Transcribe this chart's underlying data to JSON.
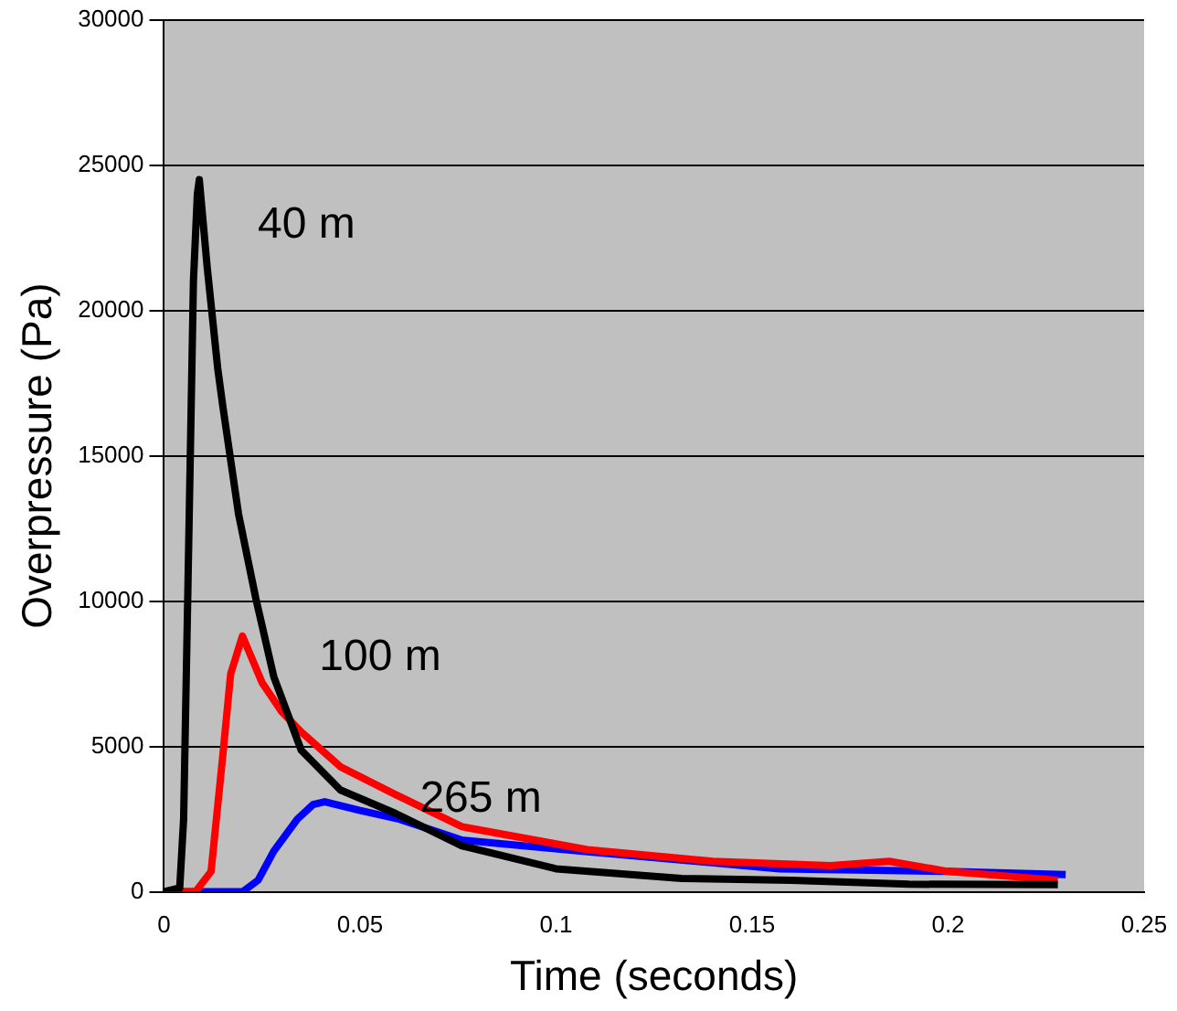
{
  "chart_data": {
    "type": "line",
    "xlabel": "Time (seconds)",
    "ylabel": "Overpressure (Pa)",
    "xlim": [
      0,
      0.25
    ],
    "xticks": [
      0,
      0.05,
      0.1,
      0.15,
      0.2,
      0.25
    ],
    "ylim": [
      0,
      30000
    ],
    "yticks": [
      0,
      5000,
      10000,
      15000,
      20000,
      25000,
      30000
    ],
    "grid": "y",
    "legend": false,
    "marker": "none",
    "series": [
      {
        "name": "40 m",
        "color": "#000000",
        "x": [
          0,
          0.004,
          0.005,
          0.0063,
          0.0075,
          0.0085,
          0.009,
          0.011,
          0.0137,
          0.015,
          0.019,
          0.0234,
          0.028,
          0.035,
          0.045,
          0.059,
          0.076,
          0.1,
          0.132,
          0.16,
          0.19,
          0.228
        ],
        "values": [
          0,
          130,
          2500,
          12000,
          21000,
          24000,
          24500,
          21500,
          18000,
          16700,
          13000,
          10100,
          7400,
          4870,
          3500,
          2700,
          1580,
          790,
          460,
          400,
          260,
          250
        ]
      },
      {
        "name": "100 m",
        "color": "#ff0000",
        "x": [
          0,
          0.008,
          0.012,
          0.015,
          0.017,
          0.02,
          0.025,
          0.03,
          0.035,
          0.045,
          0.059,
          0.076,
          0.108,
          0.14,
          0.17,
          0.185,
          0.2,
          0.228
        ],
        "values": [
          0,
          0,
          700,
          4700,
          7500,
          8800,
          7200,
          6200,
          5500,
          4300,
          3350,
          2240,
          1450,
          1050,
          900,
          1050,
          700,
          400
        ]
      },
      {
        "name": "265 m",
        "color": "#0000ff",
        "x": [
          0,
          0.02,
          0.024,
          0.028,
          0.034,
          0.038,
          0.041,
          0.05,
          0.06,
          0.076,
          0.108,
          0.157,
          0.2,
          0.23
        ],
        "values": [
          0,
          0,
          400,
          1400,
          2500,
          3000,
          3100,
          2800,
          2500,
          1780,
          1380,
          790,
          700,
          590
        ]
      }
    ]
  }
}
